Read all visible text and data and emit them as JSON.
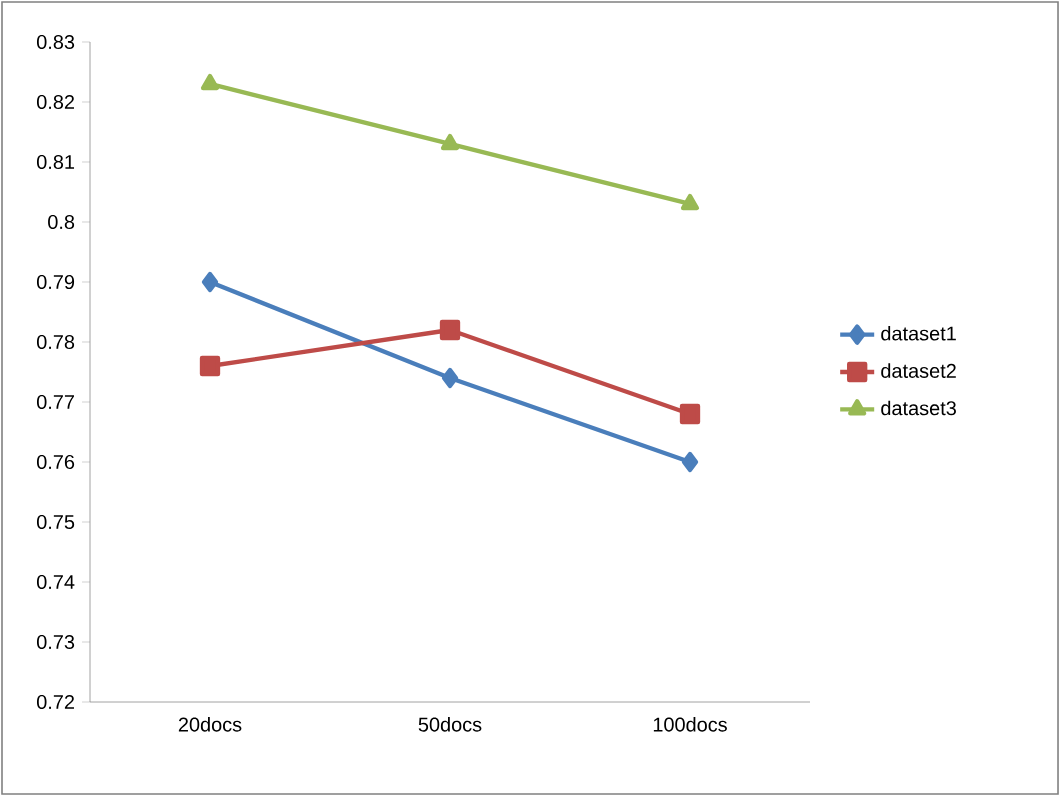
{
  "chart_data": {
    "type": "line",
    "categories": [
      "20docs",
      "50docs",
      "100docs"
    ],
    "ylim": [
      0.72,
      0.83
    ],
    "yticks": [
      0.72,
      0.73,
      0.74,
      0.75,
      0.76,
      0.77,
      0.78,
      0.79,
      0.8,
      0.81,
      0.82,
      0.83
    ],
    "legend": "right",
    "grid": false,
    "line_style": "solid",
    "series": [
      {
        "name": "dataset1",
        "color": "#4a7ebb",
        "marker": "diamond",
        "values": [
          0.79,
          0.774,
          0.76
        ]
      },
      {
        "name": "dataset2",
        "color": "#be4b48",
        "marker": "square",
        "values": [
          0.776,
          0.782,
          0.768
        ]
      },
      {
        "name": "dataset3",
        "color": "#98b954",
        "marker": "triangle",
        "values": [
          0.823,
          0.813,
          0.803
        ]
      }
    ]
  }
}
